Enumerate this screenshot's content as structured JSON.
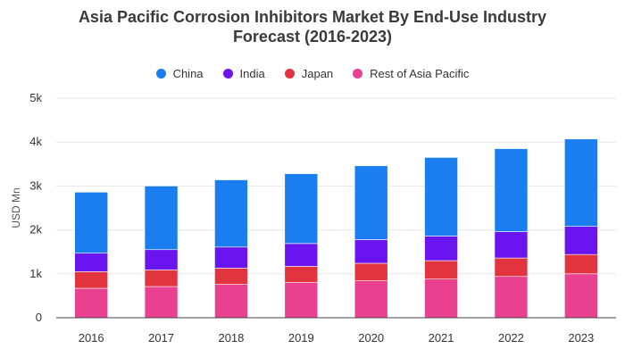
{
  "colors": {
    "china": "#1a7ef0",
    "india": "#6a14ef",
    "japan": "#e1343f",
    "rest": "#e9408f",
    "grid": "#e6e6e6",
    "axis": "#444444"
  },
  "chart_data": {
    "type": "bar",
    "stacked": true,
    "title_line1": "Asia Pacific Corrosion Inhibitors Market By End-Use Industry",
    "title_line2": "Forecast (2016-2023)",
    "xlabel": "",
    "ylabel": "USD Mn",
    "ylim": [
      0,
      5000
    ],
    "yticks": [
      0,
      1000,
      2000,
      3000,
      4000,
      5000
    ],
    "ytick_labels": [
      "0",
      "1k",
      "2k",
      "3k",
      "4k",
      "5k"
    ],
    "categories": [
      "2016",
      "2017",
      "2018",
      "2019",
      "2020",
      "2021",
      "2022",
      "2023"
    ],
    "legend_position": "top-center",
    "series": [
      {
        "name": "Rest of Asia Pacific",
        "key": "rest",
        "values": [
          670,
          710,
          760,
          800,
          840,
          880,
          940,
          1000
        ]
      },
      {
        "name": "Japan",
        "key": "japan",
        "values": [
          380,
          380,
          370,
          370,
          400,
          420,
          420,
          440
        ]
      },
      {
        "name": "India",
        "key": "india",
        "values": [
          420,
          460,
          480,
          520,
          540,
          560,
          600,
          640
        ]
      },
      {
        "name": "China",
        "key": "china",
        "values": [
          1390,
          1450,
          1530,
          1590,
          1680,
          1790,
          1890,
          1990
        ]
      }
    ],
    "legend": [
      {
        "name": "China",
        "key": "china"
      },
      {
        "name": "India",
        "key": "india"
      },
      {
        "name": "Japan",
        "key": "japan"
      },
      {
        "name": "Rest of Asia Pacific",
        "key": "rest"
      }
    ]
  }
}
